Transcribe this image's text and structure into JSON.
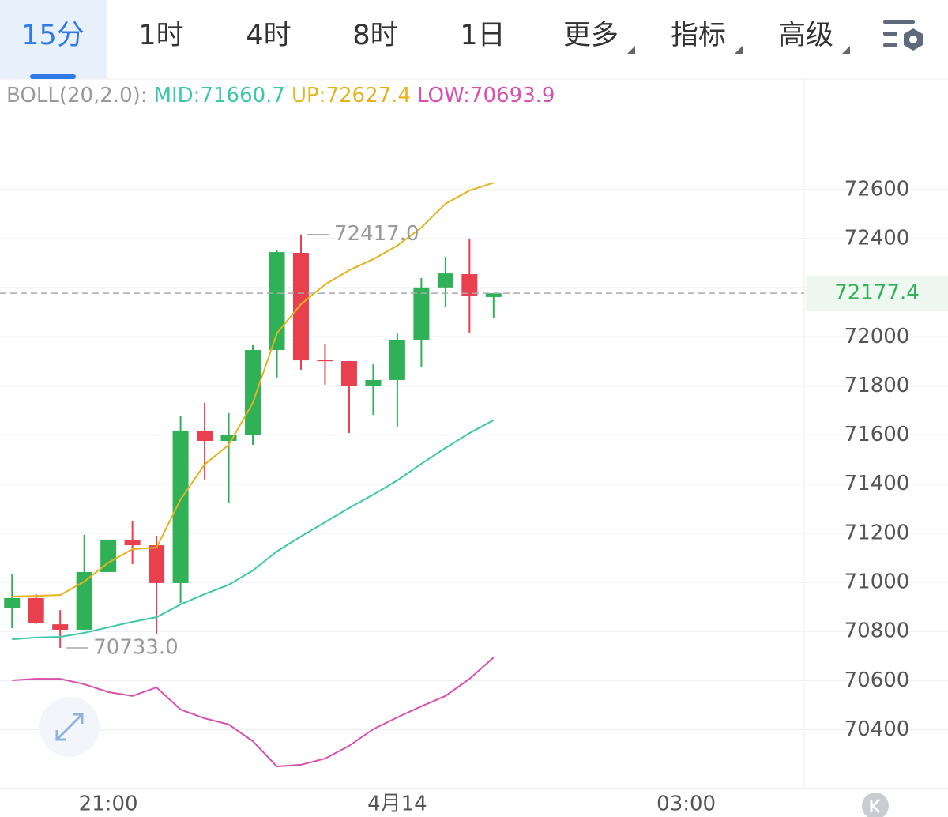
{
  "tabs": [
    "15分",
    "1时",
    "4时",
    "8时",
    "1日",
    "更多",
    "指标",
    "高级"
  ],
  "selected_tab": 0,
  "chart_data": {
    "type": "candlestick",
    "indicator": "BOLL(20,2.0):",
    "up_color": "#31b157",
    "down_color": "#e8404f",
    "candles": {
      "open": [
        70897,
        70936,
        70829,
        70807,
        71042,
        71171,
        71151,
        70997,
        71618,
        71576,
        71599,
        71946,
        72342,
        71907,
        71901,
        71798,
        71824,
        71988,
        72201,
        72255,
        72162
      ],
      "high": [
        71032,
        70952,
        70887,
        71193,
        71174,
        71248,
        71190,
        71676,
        71731,
        71689,
        71966,
        72355,
        72417,
        71972,
        71901,
        71888,
        72014,
        72239,
        72326,
        72400,
        72177.4
      ],
      "low": [
        70813,
        70830,
        70733,
        70807,
        71042,
        71074,
        70788,
        70916,
        71418,
        71322,
        71560,
        71834,
        71866,
        71805,
        71608,
        71682,
        71631,
        71879,
        72123,
        72017,
        72075
      ],
      "close": [
        70936,
        70833,
        70807,
        71042,
        71174,
        71151,
        70997,
        71618,
        71576,
        71599,
        71946,
        72345,
        71904,
        71901,
        71798,
        71824,
        71988,
        72201,
        72258,
        72165,
        72177.4
      ]
    },
    "series": [
      {
        "name": "MID:71660.7",
        "color": "#3cc8a8",
        "values": [
          70768,
          70775,
          70778,
          70794,
          70817,
          70839,
          70858,
          70910,
          70952,
          70990,
          71048,
          71126,
          71187,
          71245,
          71303,
          71357,
          71415,
          71483,
          71547,
          71608,
          71660.7
        ]
      },
      {
        "name": "UP:72627.4",
        "color": "#e6b21c",
        "values": [
          70942,
          70945,
          70948,
          71003,
          71080,
          71135,
          71141,
          71338,
          71480,
          71560,
          71731,
          72014,
          72133,
          72213,
          72271,
          72316,
          72371,
          72445,
          72542,
          72596,
          72627.4
        ]
      },
      {
        "name": "LOW:70693.9",
        "color": "#d94fb0",
        "values": [
          70601,
          70607,
          70607,
          70585,
          70553,
          70537,
          70572,
          70482,
          70446,
          70421,
          70353,
          70250,
          70257,
          70282,
          70334,
          70402,
          70450,
          70495,
          70537,
          70607,
          70693.9
        ]
      }
    ],
    "annotations": [
      {
        "value": 72417,
        "label": "72417.0"
      },
      {
        "value": 70733,
        "label": "70733.0"
      }
    ],
    "last_price": 72177.4,
    "xlim": [
      -0.5,
      32.9
    ],
    "xticks": [
      {
        "value": 4,
        "label": "21:00"
      },
      {
        "value": 16,
        "label": "4月14"
      },
      {
        "value": 28,
        "label": "03:00"
      }
    ],
    "ylim": [
      70160,
      73050
    ],
    "yticks": [
      70400,
      70600,
      70800,
      71000,
      71200,
      71400,
      71600,
      71800,
      72000,
      72200,
      72400,
      72600
    ],
    "grid": true
  }
}
